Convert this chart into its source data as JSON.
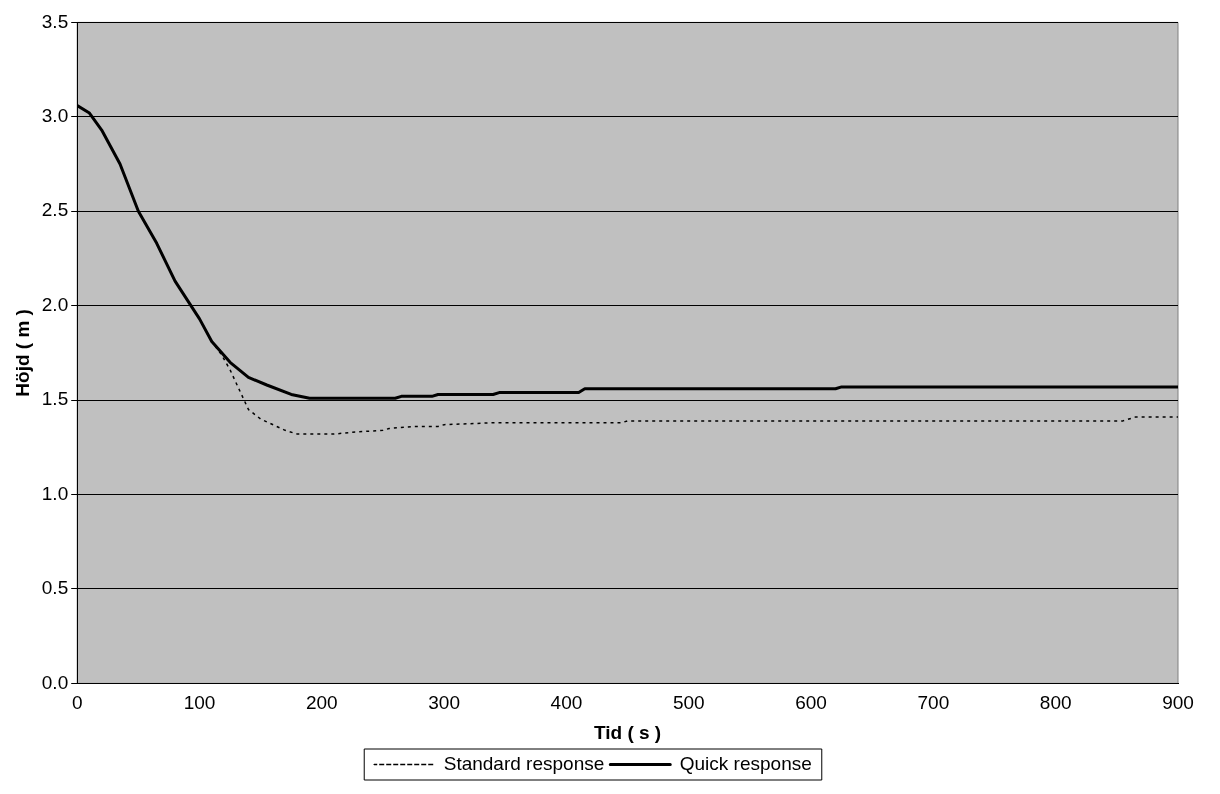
{
  "chart_data": {
    "type": "line",
    "xlabel": "Tid ( s )",
    "ylabel": "Höjd ( m )",
    "xlim": [
      0,
      900
    ],
    "xticks": [
      0,
      100,
      200,
      300,
      400,
      500,
      600,
      700,
      800,
      900
    ],
    "ylim": [
      0,
      3.5
    ],
    "yticks": [
      {
        "value": 0,
        "label": "0.0"
      },
      {
        "value": 0.5,
        "label": "0.5"
      },
      {
        "value": 1,
        "label": "1.0"
      },
      {
        "value": 1.5,
        "label": "1.5"
      },
      {
        "value": 2,
        "label": "2.0"
      },
      {
        "value": 2.5,
        "label": "2.5"
      },
      {
        "value": 3,
        "label": "3.0"
      },
      {
        "value": 3.5,
        "label": "3.5"
      }
    ],
    "grid": "y",
    "legend": "bottom",
    "series": [
      {
        "name": "Standard response",
        "color": "#000000",
        "line_style": "dotted",
        "x": [
          0,
          10,
          20,
          35,
          50,
          65,
          80,
          100,
          110,
          118,
          125,
          140,
          150,
          170,
          180,
          210,
          225,
          250,
          255,
          275,
          295,
          300,
          340,
          445,
          450,
          855,
          865,
          900
        ],
        "values": [
          3.06,
          3.02,
          2.93,
          2.75,
          2.5,
          2.33,
          2.13,
          1.93,
          1.81,
          1.74,
          1.66,
          1.45,
          1.4,
          1.34,
          1.32,
          1.32,
          1.33,
          1.34,
          1.35,
          1.36,
          1.36,
          1.37,
          1.38,
          1.38,
          1.39,
          1.39,
          1.41,
          1.41
        ]
      },
      {
        "name": "Quick response",
        "color": "#000000",
        "line_style": "solid",
        "x": [
          0,
          10,
          20,
          35,
          50,
          65,
          80,
          100,
          110,
          125,
          140,
          155,
          175,
          190,
          260,
          265,
          290,
          295,
          340,
          345,
          410,
          415,
          620,
          625,
          900
        ],
        "values": [
          3.06,
          3.02,
          2.93,
          2.75,
          2.5,
          2.33,
          2.13,
          1.93,
          1.81,
          1.7,
          1.62,
          1.58,
          1.53,
          1.51,
          1.51,
          1.52,
          1.52,
          1.53,
          1.53,
          1.54,
          1.54,
          1.56,
          1.56,
          1.57,
          1.57
        ]
      }
    ]
  }
}
